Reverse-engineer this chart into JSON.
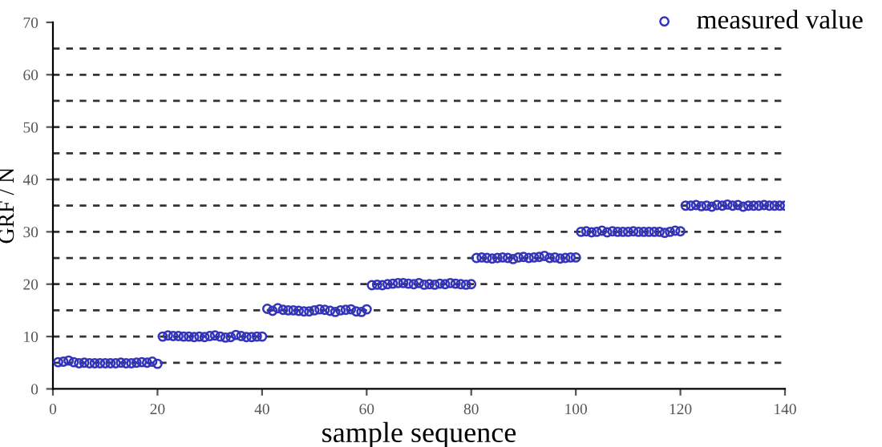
{
  "chart_data": {
    "type": "scatter",
    "xlabel": "sample sequence",
    "ylabel": "GRF / N",
    "x": [
      1,
      2,
      3,
      4,
      5,
      6,
      7,
      8,
      9,
      10,
      11,
      12,
      13,
      14,
      15,
      16,
      17,
      18,
      19,
      20,
      21,
      22,
      23,
      24,
      25,
      26,
      27,
      28,
      29,
      30,
      31,
      32,
      33,
      34,
      35,
      36,
      37,
      38,
      39,
      40,
      41,
      42,
      43,
      44,
      45,
      46,
      47,
      48,
      49,
      50,
      51,
      52,
      53,
      54,
      55,
      56,
      57,
      58,
      59,
      60,
      61,
      62,
      63,
      64,
      65,
      66,
      67,
      68,
      69,
      70,
      71,
      72,
      73,
      74,
      75,
      76,
      77,
      78,
      79,
      80,
      81,
      82,
      83,
      84,
      85,
      86,
      87,
      88,
      89,
      90,
      91,
      92,
      93,
      94,
      95,
      96,
      97,
      98,
      99,
      100,
      101,
      102,
      103,
      104,
      105,
      106,
      107,
      108,
      109,
      110,
      111,
      112,
      113,
      114,
      115,
      116,
      117,
      118,
      119,
      120,
      121,
      122,
      123,
      124,
      125,
      126,
      127,
      128,
      129,
      130,
      131,
      132,
      133,
      134,
      135,
      136,
      137,
      138,
      139,
      140
    ],
    "series": [
      {
        "name": "measured value",
        "color": "#3333bb",
        "values": [
          5.1,
          5.2,
          5.4,
          5.1,
          4.9,
          5.0,
          4.9,
          4.9,
          4.9,
          4.9,
          4.9,
          4.9,
          5.0,
          4.9,
          4.9,
          5.0,
          5.1,
          5.0,
          5.2,
          4.8,
          10.0,
          10.2,
          10.1,
          10.1,
          10.0,
          10.0,
          9.9,
          10.0,
          9.9,
          10.1,
          10.2,
          10.0,
          9.8,
          9.9,
          10.3,
          10.1,
          9.9,
          9.9,
          10.0,
          10.0,
          15.3,
          14.9,
          15.4,
          15.1,
          15.0,
          15.0,
          14.9,
          14.8,
          14.8,
          15.0,
          15.2,
          15.1,
          14.9,
          14.7,
          15.0,
          15.1,
          15.2,
          14.8,
          14.7,
          15.2,
          19.8,
          19.9,
          19.8,
          20.0,
          20.1,
          20.2,
          20.2,
          20.1,
          20.0,
          20.2,
          19.9,
          20.0,
          19.9,
          20.1,
          20.0,
          20.2,
          20.1,
          20.0,
          19.9,
          20.0,
          25.0,
          25.1,
          25.0,
          24.9,
          25.0,
          25.1,
          25.0,
          24.8,
          25.1,
          25.2,
          25.0,
          25.1,
          25.2,
          25.4,
          25.0,
          25.1,
          24.9,
          25.0,
          25.1,
          25.1,
          30.0,
          30.1,
          29.9,
          30.0,
          30.2,
          29.9,
          30.1,
          30.0,
          30.0,
          30.0,
          30.1,
          30.0,
          30.0,
          30.0,
          30.0,
          30.0,
          29.8,
          30.0,
          30.2,
          30.1,
          35.0,
          35.0,
          35.1,
          34.9,
          35.0,
          34.8,
          35.1,
          35.0,
          35.2,
          35.0,
          35.1,
          34.8,
          35.0,
          35.0,
          35.0,
          35.1,
          35.0,
          35.0,
          35.0,
          35.0
        ]
      }
    ],
    "xlim": [
      0,
      140
    ],
    "xticks": [
      0,
      20,
      40,
      60,
      80,
      100,
      120,
      140
    ],
    "ylim": [
      0,
      70
    ],
    "yticks": [
      0,
      10,
      20,
      30,
      40,
      50,
      60,
      70
    ],
    "ref_lines": [
      {
        "axis": "y",
        "value": 5,
        "color": "#333333",
        "line_style": "dashed"
      },
      {
        "axis": "y",
        "value": 10,
        "color": "#333333",
        "line_style": "dashed"
      },
      {
        "axis": "y",
        "value": 15,
        "color": "#333333",
        "line_style": "dashed"
      },
      {
        "axis": "y",
        "value": 20,
        "color": "#333333",
        "line_style": "dashed"
      },
      {
        "axis": "y",
        "value": 25,
        "color": "#333333",
        "line_style": "dashed"
      },
      {
        "axis": "y",
        "value": 30,
        "color": "#333333",
        "line_style": "dashed"
      },
      {
        "axis": "y",
        "value": 35,
        "color": "#333333",
        "line_style": "dashed"
      },
      {
        "axis": "y",
        "value": 40,
        "color": "#333333",
        "line_style": "dashed"
      },
      {
        "axis": "y",
        "value": 45,
        "color": "#333333",
        "line_style": "dashed"
      },
      {
        "axis": "y",
        "value": 50,
        "color": "#333333",
        "line_style": "dashed"
      },
      {
        "axis": "y",
        "value": 55,
        "color": "#333333",
        "line_style": "dashed"
      },
      {
        "axis": "y",
        "value": 60,
        "color": "#333333",
        "line_style": "dashed"
      },
      {
        "axis": "y",
        "value": 65,
        "color": "#333333",
        "line_style": "dashed"
      }
    ],
    "marker": "circle",
    "grid": false,
    "legend": "top right"
  }
}
